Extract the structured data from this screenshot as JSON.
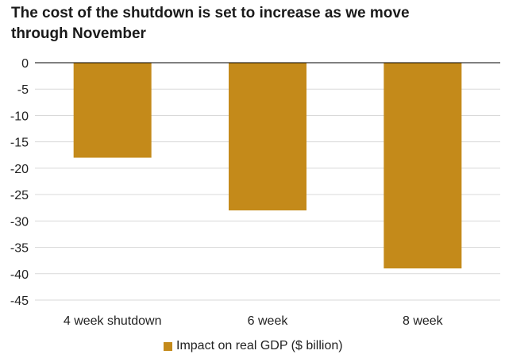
{
  "chart_data": {
    "type": "bar",
    "title": "The cost of the shutdown is set to increase as we move through November",
    "categories": [
      "4 week shutdown",
      "6 week",
      "8 week"
    ],
    "series": [
      {
        "name": "Impact on real GDP ($ billion)",
        "values": [
          -18,
          -28,
          -39
        ],
        "color": "#c48a1a"
      }
    ],
    "xlabel": "",
    "ylabel": "",
    "ylim": [
      -45,
      0
    ],
    "yticks": [
      0,
      -5,
      -10,
      -15,
      -20,
      -25,
      -30,
      -35,
      -40,
      -45
    ],
    "grid": true,
    "legend_position": "bottom"
  }
}
